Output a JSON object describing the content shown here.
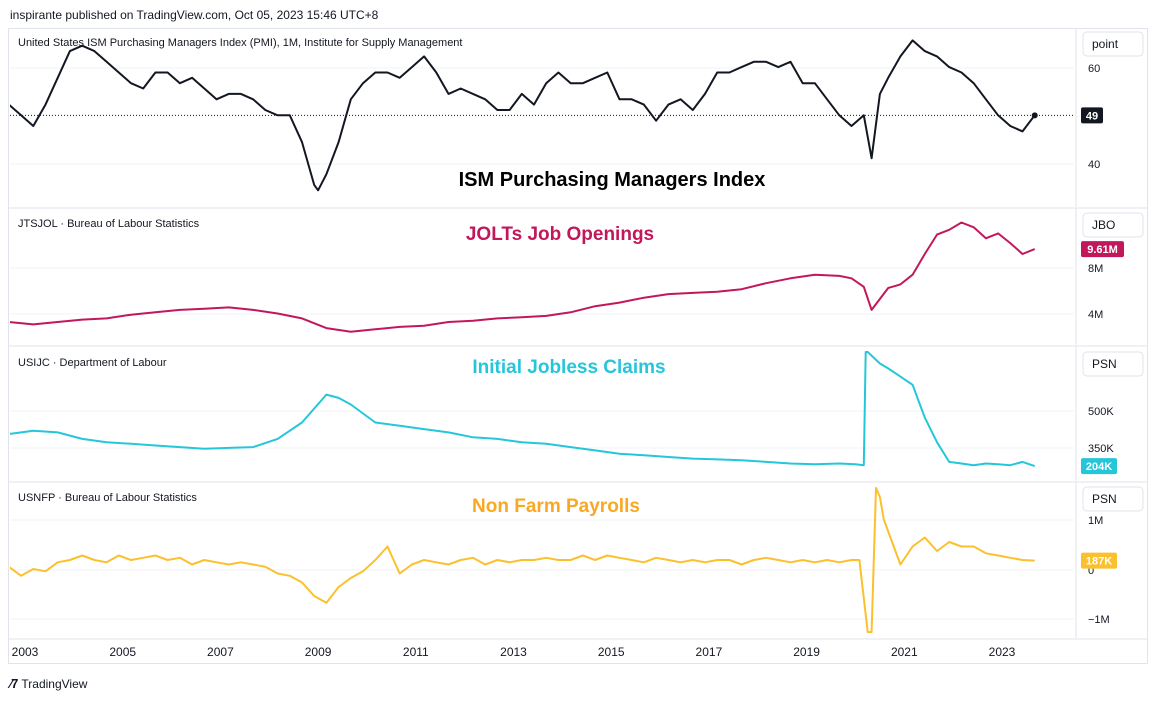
{
  "header": {
    "text": "inspirante published on TradingView.com, Oct 05, 2023 15:46 UTC+8"
  },
  "footer": {
    "logo_text": "TradingView"
  },
  "x_axis": {
    "ticks": [
      "2003",
      "2005",
      "2007",
      "2009",
      "2011",
      "2013",
      "2015",
      "2017",
      "2019",
      "2021",
      "2023"
    ]
  },
  "chart_data": [
    {
      "type": "line",
      "legend": "United States ISM Purchasing Managers Index (PMI), 1M, Institute for Supply Management",
      "annotation": "ISM Purchasing Managers Index",
      "annotation_color": "#000000",
      "color": "#131722",
      "scale_label": "point",
      "y_ticks": [
        "60",
        "40"
      ],
      "last_value_label": "49",
      "last_value_bg": "#131722",
      "ylim": [
        33,
        64
      ],
      "x": [
        2002.67,
        2002.92,
        2003.17,
        2003.42,
        2003.67,
        2003.92,
        2004.17,
        2004.42,
        2004.67,
        2004.92,
        2005.17,
        2005.42,
        2005.67,
        2005.92,
        2006.17,
        2006.42,
        2006.67,
        2006.92,
        2007.17,
        2007.42,
        2007.67,
        2007.92,
        2008.17,
        2008.42,
        2008.67,
        2008.92,
        2009.0,
        2009.17,
        2009.42,
        2009.67,
        2009.92,
        2010.17,
        2010.42,
        2010.67,
        2010.92,
        2011.17,
        2011.42,
        2011.67,
        2011.92,
        2012.17,
        2012.42,
        2012.67,
        2012.92,
        2013.17,
        2013.42,
        2013.67,
        2013.92,
        2014.17,
        2014.42,
        2014.67,
        2014.92,
        2015.17,
        2015.42,
        2015.67,
        2015.92,
        2016.17,
        2016.42,
        2016.67,
        2016.92,
        2017.17,
        2017.42,
        2017.67,
        2017.92,
        2018.17,
        2018.42,
        2018.67,
        2018.92,
        2019.17,
        2019.42,
        2019.67,
        2019.92,
        2020.17,
        2020.33,
        2020.5,
        2020.67,
        2020.92,
        2021.17,
        2021.42,
        2021.67,
        2021.92,
        2022.17,
        2022.42,
        2022.67,
        2022.92,
        2023.17,
        2023.42,
        2023.67
      ],
      "values": [
        51,
        49,
        47,
        51,
        56,
        61,
        62,
        61,
        59,
        57,
        55,
        54,
        57,
        57,
        55,
        56,
        54,
        52,
        53,
        53,
        52,
        50,
        49,
        49,
        44,
        36,
        35,
        38,
        44,
        52,
        55,
        57,
        57,
        56,
        58,
        60,
        57,
        53,
        54,
        53,
        52,
        50,
        50,
        53,
        51,
        55,
        57,
        55,
        55,
        56,
        57,
        52,
        52,
        51,
        48,
        51,
        52,
        50,
        53,
        57,
        57,
        58,
        59,
        59,
        58,
        59,
        55,
        55,
        52,
        49,
        47,
        49,
        41,
        53,
        56,
        60,
        63,
        61,
        60,
        58,
        57,
        55,
        52,
        49,
        47,
        46,
        49
      ]
    },
    {
      "type": "line",
      "legend": "JTSJOL · Bureau of Labour Statistics",
      "annotation": "JOLTs Job Openings",
      "annotation_color": "#c2185b",
      "color": "#c2185b",
      "scale_label": "JBO",
      "y_ticks": [
        "8M",
        "4M"
      ],
      "last_value_label": "9.61M",
      "last_value_bg": "#c2185b",
      "ylim": [
        2.2,
        12.5
      ],
      "x": [
        2002.67,
        2003.17,
        2003.67,
        2004.17,
        2004.67,
        2005.17,
        2005.67,
        2006.17,
        2006.67,
        2007.17,
        2007.67,
        2008.17,
        2008.67,
        2009.17,
        2009.67,
        2010.17,
        2010.67,
        2011.17,
        2011.67,
        2012.17,
        2012.67,
        2013.17,
        2013.67,
        2014.17,
        2014.67,
        2015.17,
        2015.67,
        2016.17,
        2016.67,
        2017.17,
        2017.67,
        2018.17,
        2018.67,
        2019.17,
        2019.67,
        2019.92,
        2020.17,
        2020.33,
        2020.67,
        2020.92,
        2021.17,
        2021.42,
        2021.67,
        2021.92,
        2022.17,
        2022.42,
        2022.67,
        2022.92,
        2023.17,
        2023.42,
        2023.67
      ],
      "values": [
        3.6,
        3.4,
        3.6,
        3.8,
        3.9,
        4.2,
        4.4,
        4.6,
        4.7,
        4.8,
        4.6,
        4.3,
        3.9,
        3.1,
        2.8,
        3.0,
        3.2,
        3.3,
        3.6,
        3.7,
        3.9,
        4.0,
        4.1,
        4.4,
        4.9,
        5.2,
        5.6,
        5.9,
        6.0,
        6.1,
        6.3,
        6.8,
        7.2,
        7.5,
        7.4,
        7.2,
        6.5,
        4.6,
        6.4,
        6.7,
        7.5,
        9.2,
        10.8,
        11.2,
        11.8,
        11.4,
        10.5,
        10.9,
        10.1,
        9.2,
        9.61
      ]
    },
    {
      "type": "line",
      "legend": "USIJC · Department of Labour",
      "annotation": "Initial Jobless Claims",
      "annotation_color": "#26c6da",
      "color": "#26c6da",
      "scale_label": "PSN",
      "y_ticks": [
        "500K",
        "350K"
      ],
      "last_value_label": "204K",
      "last_value_bg": "#26c6da",
      "ylim": [
        150,
        900
      ],
      "x": [
        2002.67,
        2003.17,
        2003.67,
        2004.17,
        2004.67,
        2005.17,
        2005.67,
        2006.17,
        2006.67,
        2007.17,
        2007.67,
        2008.17,
        2008.67,
        2009.17,
        2009.42,
        2009.67,
        2010.17,
        2010.67,
        2011.17,
        2011.67,
        2012.17,
        2012.67,
        2013.17,
        2013.67,
        2014.17,
        2014.67,
        2015.17,
        2015.67,
        2016.17,
        2016.67,
        2017.17,
        2017.67,
        2018.17,
        2018.67,
        2019.17,
        2019.67,
        2020.0,
        2020.17,
        2020.21,
        2020.25,
        2020.5,
        2020.67,
        2020.92,
        2021.17,
        2021.42,
        2021.67,
        2021.92,
        2022.17,
        2022.42,
        2022.67,
        2022.92,
        2023.17,
        2023.42,
        2023.67
      ],
      "values": [
        400,
        420,
        410,
        370,
        350,
        340,
        330,
        320,
        310,
        315,
        320,
        370,
        470,
        640,
        620,
        580,
        470,
        450,
        430,
        410,
        380,
        370,
        350,
        340,
        320,
        300,
        280,
        270,
        260,
        250,
        245,
        240,
        230,
        220,
        215,
        220,
        215,
        210,
        900,
        900,
        830,
        800,
        750,
        700,
        500,
        350,
        230,
        220,
        210,
        220,
        215,
        210,
        230,
        204
      ]
    },
    {
      "type": "line",
      "legend": "USNFP · Bureau of Labour Statistics",
      "annotation": "Non Farm Payrolls",
      "annotation_color": "#f9a825",
      "color": "#fbc02d",
      "scale_label": "PSN",
      "y_ticks": [
        "1M",
        "0",
        "−1M"
      ],
      "last_value_label": "187K",
      "last_value_bg": "#fbc02d",
      "ylim": [
        -1.4,
        1.8
      ],
      "x": [
        2002.67,
        2002.92,
        2003.17,
        2003.42,
        2003.67,
        2003.92,
        2004.17,
        2004.42,
        2004.67,
        2004.92,
        2005.17,
        2005.42,
        2005.67,
        2005.92,
        2006.17,
        2006.42,
        2006.67,
        2006.92,
        2007.17,
        2007.42,
        2007.67,
        2007.92,
        2008.17,
        2008.42,
        2008.67,
        2008.92,
        2009.17,
        2009.42,
        2009.67,
        2009.92,
        2010.17,
        2010.42,
        2010.67,
        2010.92,
        2011.17,
        2011.42,
        2011.67,
        2011.92,
        2012.17,
        2012.42,
        2012.67,
        2012.92,
        2013.17,
        2013.42,
        2013.67,
        2013.92,
        2014.17,
        2014.42,
        2014.67,
        2014.92,
        2015.17,
        2015.42,
        2015.67,
        2015.92,
        2016.17,
        2016.42,
        2016.67,
        2016.92,
        2017.17,
        2017.42,
        2017.67,
        2017.92,
        2018.17,
        2018.42,
        2018.67,
        2018.92,
        2019.17,
        2019.42,
        2019.67,
        2019.92,
        2020.08,
        2020.25,
        2020.33,
        2020.42,
        2020.5,
        2020.58,
        2020.75,
        2020.92,
        2021.17,
        2021.42,
        2021.67,
        2021.92,
        2022.17,
        2022.42,
        2022.67,
        2022.92,
        2023.17,
        2023.42,
        2023.67
      ],
      "values": [
        0.05,
        -0.15,
        0.0,
        -0.05,
        0.15,
        0.2,
        0.3,
        0.2,
        0.15,
        0.3,
        0.2,
        0.25,
        0.3,
        0.2,
        0.25,
        0.1,
        0.2,
        0.15,
        0.1,
        0.15,
        0.1,
        0.05,
        -0.1,
        -0.15,
        -0.3,
        -0.6,
        -0.75,
        -0.4,
        -0.2,
        -0.05,
        0.2,
        0.5,
        -0.1,
        0.1,
        0.2,
        0.15,
        0.1,
        0.2,
        0.25,
        0.1,
        0.2,
        0.15,
        0.2,
        0.2,
        0.25,
        0.2,
        0.2,
        0.3,
        0.2,
        0.3,
        0.25,
        0.2,
        0.15,
        0.25,
        0.2,
        0.15,
        0.2,
        0.15,
        0.2,
        0.2,
        0.1,
        0.2,
        0.25,
        0.2,
        0.15,
        0.2,
        0.15,
        0.2,
        0.15,
        0.2,
        0.2,
        -1.4,
        -1.4,
        1.8,
        1.6,
        1.1,
        0.6,
        0.1,
        0.5,
        0.7,
        0.4,
        0.6,
        0.5,
        0.5,
        0.35,
        0.3,
        0.25,
        0.2,
        0.187
      ]
    }
  ]
}
